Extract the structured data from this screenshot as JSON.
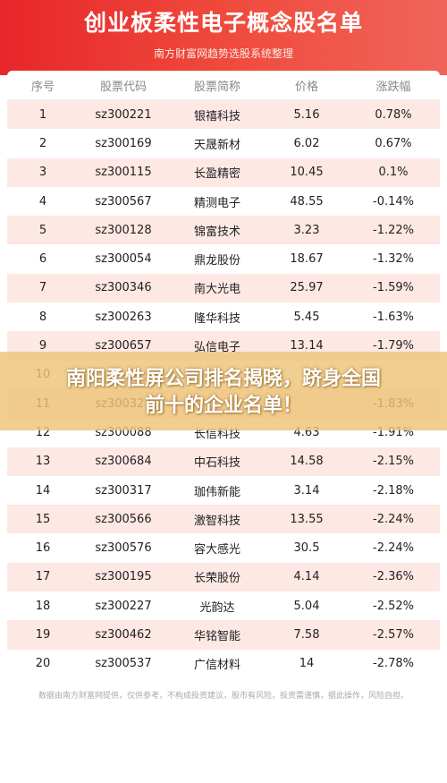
{
  "header": {
    "title": "创业板柔性电子概念股名单",
    "subtitle": "南方财富网趋势选股系统整理"
  },
  "columns": [
    "序号",
    "股票代码",
    "股票简称",
    "价格",
    "涨跌幅"
  ],
  "rows": [
    [
      "1",
      "sz300221",
      "银禧科技",
      "5.16",
      "0.78%"
    ],
    [
      "2",
      "sz300169",
      "天晟新材",
      "6.02",
      "0.67%"
    ],
    [
      "3",
      "sz300115",
      "长盈精密",
      "10.45",
      "0.1%"
    ],
    [
      "4",
      "sz300567",
      "精测电子",
      "48.55",
      "-0.14%"
    ],
    [
      "5",
      "sz300128",
      "锦富技术",
      "3.23",
      "-1.22%"
    ],
    [
      "6",
      "sz300054",
      "鼎龙股份",
      "18.67",
      "-1.32%"
    ],
    [
      "7",
      "sz300346",
      "南大光电",
      "25.97",
      "-1.59%"
    ],
    [
      "8",
      "sz300263",
      "隆华科技",
      "5.45",
      "-1.63%"
    ],
    [
      "9",
      "sz300657",
      "弘信电子",
      "13.14",
      "-1.79%"
    ],
    [
      "10",
      "",
      "",
      "",
      ""
    ],
    [
      "11",
      "sz300327",
      "",
      "",
      "-1.83%"
    ],
    [
      "12",
      "sz300088",
      "长信科技",
      "4.63",
      "-1.91%"
    ],
    [
      "13",
      "sz300684",
      "中石科技",
      "14.58",
      "-2.15%"
    ],
    [
      "14",
      "sz300317",
      "珈伟新能",
      "3.14",
      "-2.18%"
    ],
    [
      "15",
      "sz300566",
      "激智科技",
      "13.55",
      "-2.24%"
    ],
    [
      "16",
      "sz300576",
      "容大感光",
      "30.5",
      "-2.24%"
    ],
    [
      "17",
      "sz300195",
      "长荣股份",
      "4.14",
      "-2.36%"
    ],
    [
      "18",
      "sz300227",
      "光韵达",
      "5.04",
      "-2.52%"
    ],
    [
      "19",
      "sz300462",
      "华铭智能",
      "7.58",
      "-2.57%"
    ],
    [
      "20",
      "sz300537",
      "广信材料",
      "14",
      "-2.78%"
    ]
  ],
  "footnote": "数据由南方财富网提供，仅供参考，不构成投资建议，股市有风险，投资需谨慎，据此操作，风险自担。",
  "overlay": {
    "line1": "南阳柔性屏公司排名揭晓，跻身全国",
    "line2": "前十的企业名单！"
  }
}
